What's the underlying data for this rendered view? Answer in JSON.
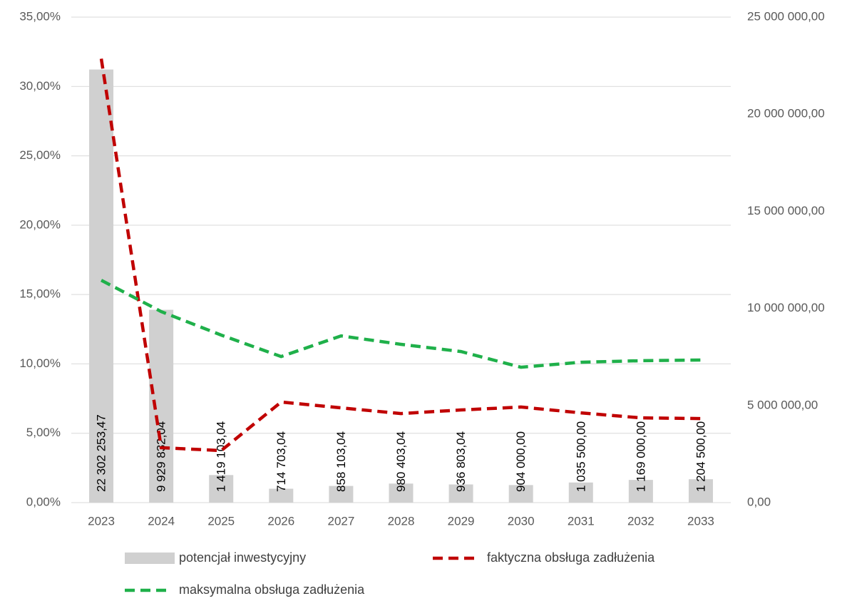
{
  "chart_data": {
    "type": "bar",
    "categories": [
      "2023",
      "2024",
      "2025",
      "2026",
      "2027",
      "2028",
      "2029",
      "2030",
      "2031",
      "2032",
      "2033"
    ],
    "series": [
      {
        "name": "potencjał inwestycyjny",
        "type": "bar",
        "axis": "y2",
        "color": "#d0d0d0",
        "values": [
          22302253.47,
          9929832.04,
          1419103.04,
          714703.04,
          858103.04,
          980403.04,
          936803.04,
          904000.0,
          1035500.0,
          1169000.0,
          1204500.0
        ],
        "value_labels": [
          "22 302 253,47",
          "9 929 832,04",
          "1 419 103,04",
          "714 703,04",
          "858 103,04",
          "980 403,04",
          "936 803,04",
          "904 000,00",
          "1 035 500,00",
          "1 169 000,00",
          "1 204 500,00"
        ]
      },
      {
        "name": "faktyczna obsługa zadłużenia",
        "type": "line",
        "color": "#c00000",
        "values": [
          32.0,
          3.96,
          3.75,
          7.25,
          6.83,
          6.42,
          6.68,
          6.89,
          6.47,
          6.11,
          6.06
        ]
      },
      {
        "name": "maksymalna obsługa zadłużenia",
        "type": "line",
        "color": "#1fb04a",
        "values": [
          16.03,
          13.77,
          12.08,
          10.53,
          12.02,
          11.41,
          10.89,
          9.76,
          10.12,
          10.23,
          10.28
        ]
      }
    ],
    "ylim": [
      0,
      35
    ],
    "yticks": [
      {
        "value": 0,
        "label": "0,00%"
      },
      {
        "value": 5,
        "label": "5,00%"
      },
      {
        "value": 10,
        "label": "10,00%"
      },
      {
        "value": 15,
        "label": "15,00%"
      },
      {
        "value": 20,
        "label": "20,00%"
      },
      {
        "value": 25,
        "label": "25,00%"
      },
      {
        "value": 30,
        "label": "30,00%"
      },
      {
        "value": 35,
        "label": "35,00%"
      }
    ],
    "y2lim": [
      0,
      25000000
    ],
    "y2ticks": [
      {
        "value": 0,
        "label": "0,00"
      },
      {
        "value": 5000000,
        "label": "5 000 000,00"
      },
      {
        "value": 10000000,
        "label": "10 000 000,00"
      },
      {
        "value": 15000000,
        "label": "15 000 000,00"
      },
      {
        "value": 20000000,
        "label": "20 000 000,00"
      },
      {
        "value": 25000000,
        "label": "25 000 000,00"
      }
    ],
    "grid": true
  }
}
